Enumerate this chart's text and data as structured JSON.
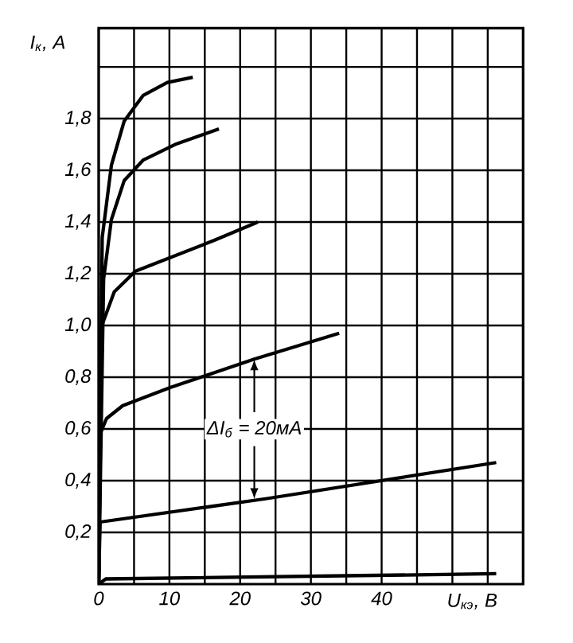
{
  "chart_data": {
    "type": "line",
    "xlabel": "U$_{кэ}$, В",
    "ylabel": "I$_{к}$, A",
    "xlim": [
      0,
      60
    ],
    "ylim": [
      0,
      2.15
    ],
    "xticks": [
      0,
      10,
      20,
      30,
      40,
      {
        "value": 50,
        "label": null
      },
      {
        "value": 60,
        "label": null
      }
    ],
    "yticks": [
      {
        "value": 0.2,
        "label": "0,2"
      },
      {
        "value": 0.4,
        "label": "0,4"
      },
      {
        "value": 0.6,
        "label": "0,6"
      },
      {
        "value": 0.8,
        "label": "0,8"
      },
      {
        "value": 1.0,
        "label": "1,0"
      },
      {
        "value": 1.2,
        "label": "1,2"
      },
      {
        "value": 1.4,
        "label": "1,4"
      },
      {
        "value": 1.6,
        "label": "1,6"
      },
      {
        "value": 1.8,
        "label": "1,8"
      },
      {
        "value": 2.0,
        "label": null
      }
    ],
    "grid": true,
    "marker": "none",
    "line_style": "solid",
    "annotations": [
      {
        "text": "ΔI$_{б}$ = 20мА",
        "x": 22,
        "y": 0.87
      }
    ],
    "series": [
      {
        "color": "#000000",
        "x": [
          0,
          0.5,
          1.8,
          3.6,
          6.3,
          9.7,
          13.3
        ],
        "values": [
          0,
          1.34,
          1.62,
          1.79,
          1.89,
          1.94,
          1.96
        ]
      },
      {
        "color": "#000000",
        "x": [
          0,
          0.7,
          1.8,
          3.6,
          6.3,
          10.8,
          17
        ],
        "values": [
          0,
          1.18,
          1.41,
          1.56,
          1.64,
          1.7,
          1.76
        ]
      },
      {
        "color": "#000000",
        "x": [
          0,
          0.45,
          2.2,
          5.2,
          10.8,
          16.4,
          22.5
        ],
        "values": [
          0,
          1.0,
          1.13,
          1.21,
          1.27,
          1.33,
          1.4
        ]
      },
      {
        "color": "#000000",
        "x": [
          0,
          0.2,
          1.1,
          3.4,
          10.1,
          22,
          34
        ],
        "values": [
          0,
          0.58,
          0.64,
          0.69,
          0.76,
          0.87,
          0.97
        ]
      },
      {
        "color": "#000000",
        "x": [
          0,
          0.2,
          23.6,
          56.2
        ],
        "values": [
          0,
          0.24,
          0.33,
          0.47
        ]
      },
      {
        "color": "#000000",
        "x": [
          0,
          1,
          56.2
        ],
        "values": [
          0,
          0.02,
          0.04
        ]
      }
    ]
  }
}
